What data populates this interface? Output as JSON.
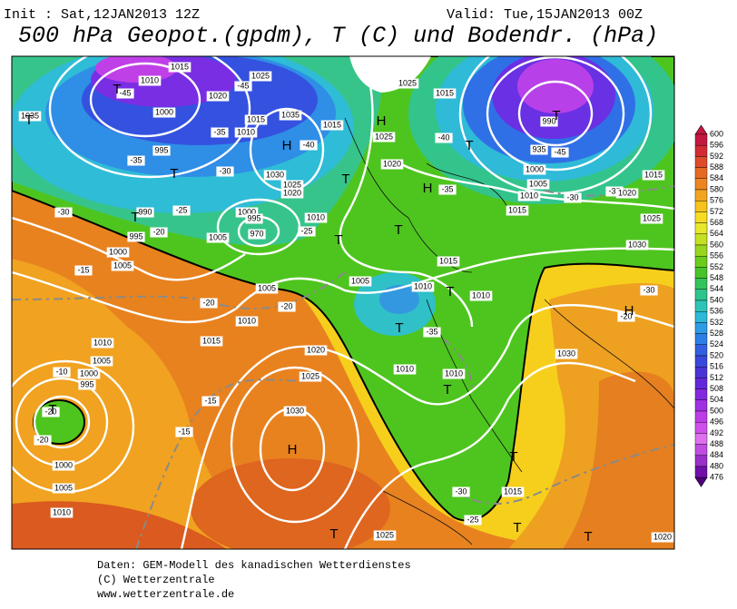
{
  "header": {
    "init": "Init : Sat,12JAN2013 12Z",
    "valid": "Valid: Tue,15JAN2013 00Z",
    "title": "500 hPa Geopot.(gpdm), T (C) und Bodendr. (hPa)"
  },
  "colorbar": {
    "levels": [
      600,
      596,
      592,
      588,
      584,
      580,
      576,
      572,
      568,
      564,
      560,
      556,
      552,
      548,
      544,
      540,
      536,
      532,
      528,
      524,
      520,
      516,
      512,
      508,
      504,
      500,
      496,
      492,
      488,
      484,
      480,
      476
    ]
  },
  "map": {
    "labels": [
      "1015",
      "1025",
      "1010",
      "-45",
      "1020",
      "-45",
      "1025",
      "1015",
      "1035",
      "1000",
      "1015",
      "1035",
      "1015",
      "1010",
      "-35",
      "-40",
      "1025",
      "990",
      "-40",
      "995",
      "-35",
      "-30",
      "1030",
      "1020",
      "935",
      "-45",
      "1000",
      "1025",
      "1020",
      "1015",
      "1005",
      "-35",
      "-30",
      "-35",
      "1010",
      "1020",
      "-30",
      "990",
      "-25",
      "1000",
      "995",
      "1010",
      "1015",
      "1025",
      "995",
      "-20",
      "970",
      "1005",
      "-25",
      "1030",
      "1000",
      "1005",
      "-15",
      "1015",
      "-30",
      "1005",
      "1010",
      "1005",
      "1010",
      "-20",
      "-20",
      "1010",
      "-20",
      "1015",
      "1020",
      "-35",
      "1010",
      "1030",
      "1005",
      "-10",
      "1010",
      "1025",
      "1000",
      "995",
      "1010",
      "-15",
      "-20",
      "1030",
      "-15",
      "-20",
      "1000",
      "1005",
      "-30",
      "1015",
      "1010",
      "-25",
      "1025",
      "1020"
    ],
    "centers": [
      "T",
      "T",
      "T",
      "H",
      "T",
      "T",
      "T",
      "H",
      "T",
      "H",
      "T",
      "T",
      "T",
      "T",
      "H",
      "T",
      "T",
      "T",
      "T",
      "H",
      "T",
      "T"
    ]
  },
  "footer": {
    "lines": [
      "Daten: GEM-Modell des kanadischen Wetterdienstes",
      "(C) Wetterzentrale",
      "www.wetterzentrale.de"
    ]
  }
}
